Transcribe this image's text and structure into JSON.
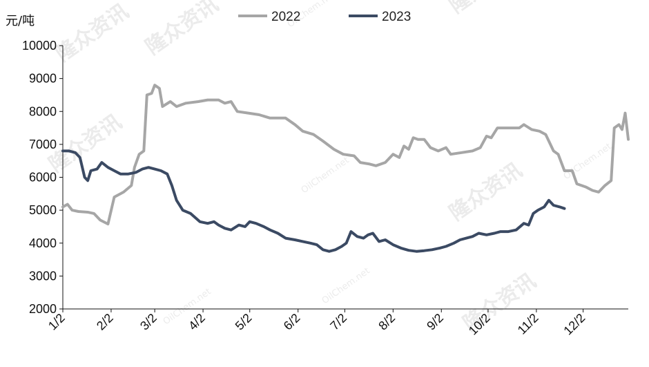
{
  "chart_data": {
    "type": "line",
    "unit_label": "元/吨",
    "ylim": [
      2000,
      10000
    ],
    "y_ticks": [
      2000,
      3000,
      4000,
      5000,
      6000,
      7000,
      8000,
      9000,
      10000
    ],
    "y_tick_labels": [
      "2000",
      "3000",
      "4000",
      "5000",
      "6000",
      "7000",
      "8000",
      "9000",
      "10000"
    ],
    "x_range": [
      "01-02",
      "12-31"
    ],
    "x_ticks": [
      "01-02",
      "02-02",
      "03-02",
      "04-02",
      "05-02",
      "06-02",
      "07-02",
      "08-02",
      "09-02",
      "10-02",
      "11-02",
      "12-02"
    ],
    "x_tick_labels": [
      "1/2",
      "2/2",
      "3/2",
      "4/2",
      "5/2",
      "6/2",
      "7/2",
      "8/2",
      "9/2",
      "10/2",
      "11/2",
      "12/2"
    ],
    "grid": false,
    "legend_position": "top-center",
    "watermark": [
      "隆众资讯",
      "OilChem.net"
    ],
    "series": [
      {
        "name": "2022",
        "color": "#a6a6a6",
        "points": [
          [
            "01-02",
            5100
          ],
          [
            "01-05",
            5180
          ],
          [
            "01-08",
            5000
          ],
          [
            "01-12",
            4960
          ],
          [
            "01-18",
            4940
          ],
          [
            "01-22",
            4900
          ],
          [
            "01-26",
            4700
          ],
          [
            "01-31",
            4580
          ],
          [
            "02-04",
            5400
          ],
          [
            "02-10",
            5550
          ],
          [
            "02-15",
            5750
          ],
          [
            "02-17",
            6300
          ],
          [
            "02-20",
            6700
          ],
          [
            "02-23",
            6800
          ],
          [
            "02-25",
            8500
          ],
          [
            "02-28",
            8550
          ],
          [
            "03-02",
            8800
          ],
          [
            "03-05",
            8700
          ],
          [
            "03-07",
            8150
          ],
          [
            "03-12",
            8300
          ],
          [
            "03-16",
            8150
          ],
          [
            "03-22",
            8250
          ],
          [
            "03-30",
            8300
          ],
          [
            "04-05",
            8350
          ],
          [
            "04-12",
            8350
          ],
          [
            "04-16",
            8250
          ],
          [
            "04-20",
            8300
          ],
          [
            "04-24",
            8000
          ],
          [
            "05-01",
            7950
          ],
          [
            "05-08",
            7900
          ],
          [
            "05-15",
            7800
          ],
          [
            "05-25",
            7800
          ],
          [
            "05-31",
            7600
          ],
          [
            "06-05",
            7400
          ],
          [
            "06-12",
            7300
          ],
          [
            "06-18",
            7100
          ],
          [
            "06-25",
            6850
          ],
          [
            "07-01",
            6700
          ],
          [
            "07-08",
            6650
          ],
          [
            "07-12",
            6450
          ],
          [
            "07-18",
            6400
          ],
          [
            "07-22",
            6350
          ],
          [
            "07-28",
            6450
          ],
          [
            "08-02",
            6700
          ],
          [
            "08-06",
            6600
          ],
          [
            "08-09",
            6950
          ],
          [
            "08-12",
            6850
          ],
          [
            "08-15",
            7200
          ],
          [
            "08-18",
            7150
          ],
          [
            "08-22",
            7150
          ],
          [
            "08-26",
            6900
          ],
          [
            "08-31",
            6800
          ],
          [
            "09-05",
            6900
          ],
          [
            "09-08",
            6700
          ],
          [
            "09-15",
            6750
          ],
          [
            "09-22",
            6800
          ],
          [
            "09-27",
            6900
          ],
          [
            "10-01",
            7250
          ],
          [
            "10-04",
            7200
          ],
          [
            "10-08",
            7500
          ],
          [
            "10-15",
            7500
          ],
          [
            "10-22",
            7500
          ],
          [
            "10-25",
            7600
          ],
          [
            "10-30",
            7450
          ],
          [
            "11-04",
            7400
          ],
          [
            "11-08",
            7300
          ],
          [
            "11-13",
            6800
          ],
          [
            "11-16",
            6700
          ],
          [
            "11-20",
            6200
          ],
          [
            "11-25",
            6200
          ],
          [
            "11-28",
            5800
          ],
          [
            "12-04",
            5700
          ],
          [
            "12-08",
            5600
          ],
          [
            "12-12",
            5550
          ],
          [
            "12-16",
            5750
          ],
          [
            "12-20",
            5900
          ],
          [
            "12-22",
            7500
          ],
          [
            "12-25",
            7600
          ],
          [
            "12-27",
            7450
          ],
          [
            "12-29",
            7950
          ],
          [
            "12-31",
            7150
          ]
        ]
      },
      {
        "name": "2023",
        "color": "#3b4a63",
        "points": [
          [
            "01-02",
            6800
          ],
          [
            "01-06",
            6800
          ],
          [
            "01-10",
            6750
          ],
          [
            "01-13",
            6600
          ],
          [
            "01-16",
            6000
          ],
          [
            "01-18",
            5900
          ],
          [
            "01-20",
            6200
          ],
          [
            "01-24",
            6250
          ],
          [
            "01-27",
            6450
          ],
          [
            "01-31",
            6300
          ],
          [
            "02-04",
            6200
          ],
          [
            "02-08",
            6100
          ],
          [
            "02-13",
            6100
          ],
          [
            "02-18",
            6150
          ],
          [
            "02-22",
            6250
          ],
          [
            "02-26",
            6300
          ],
          [
            "03-02",
            6250
          ],
          [
            "03-06",
            6200
          ],
          [
            "03-10",
            6100
          ],
          [
            "03-13",
            5750
          ],
          [
            "03-16",
            5300
          ],
          [
            "03-20",
            5000
          ],
          [
            "03-25",
            4900
          ],
          [
            "03-31",
            4650
          ],
          [
            "04-05",
            4600
          ],
          [
            "04-09",
            4650
          ],
          [
            "04-12",
            4550
          ],
          [
            "04-16",
            4450
          ],
          [
            "04-20",
            4400
          ],
          [
            "04-25",
            4550
          ],
          [
            "04-29",
            4500
          ],
          [
            "05-02",
            4650
          ],
          [
            "05-06",
            4600
          ],
          [
            "05-11",
            4500
          ],
          [
            "05-15",
            4400
          ],
          [
            "05-20",
            4300
          ],
          [
            "05-25",
            4150
          ],
          [
            "05-31",
            4100
          ],
          [
            "06-05",
            4050
          ],
          [
            "06-10",
            4000
          ],
          [
            "06-14",
            3950
          ],
          [
            "06-18",
            3800
          ],
          [
            "06-22",
            3750
          ],
          [
            "06-26",
            3800
          ],
          [
            "06-30",
            3900
          ],
          [
            "07-03",
            4000
          ],
          [
            "07-06",
            4350
          ],
          [
            "07-10",
            4200
          ],
          [
            "07-14",
            4150
          ],
          [
            "07-17",
            4250
          ],
          [
            "07-20",
            4300
          ],
          [
            "07-24",
            4050
          ],
          [
            "07-28",
            4100
          ],
          [
            "08-02",
            3950
          ],
          [
            "08-07",
            3850
          ],
          [
            "08-12",
            3780
          ],
          [
            "08-17",
            3750
          ],
          [
            "08-22",
            3770
          ],
          [
            "08-27",
            3800
          ],
          [
            "09-01",
            3850
          ],
          [
            "09-05",
            3900
          ],
          [
            "09-10",
            4000
          ],
          [
            "09-14",
            4100
          ],
          [
            "09-18",
            4150
          ],
          [
            "09-22",
            4200
          ],
          [
            "09-26",
            4300
          ],
          [
            "10-01",
            4250
          ],
          [
            "10-06",
            4300
          ],
          [
            "10-10",
            4350
          ],
          [
            "10-15",
            4350
          ],
          [
            "10-20",
            4400
          ],
          [
            "10-25",
            4600
          ],
          [
            "10-28",
            4550
          ],
          [
            "10-31",
            4900
          ],
          [
            "11-03",
            5000
          ],
          [
            "11-07",
            5100
          ],
          [
            "11-10",
            5300
          ],
          [
            "11-13",
            5150
          ],
          [
            "11-17",
            5100
          ],
          [
            "11-20",
            5050
          ]
        ]
      }
    ]
  }
}
